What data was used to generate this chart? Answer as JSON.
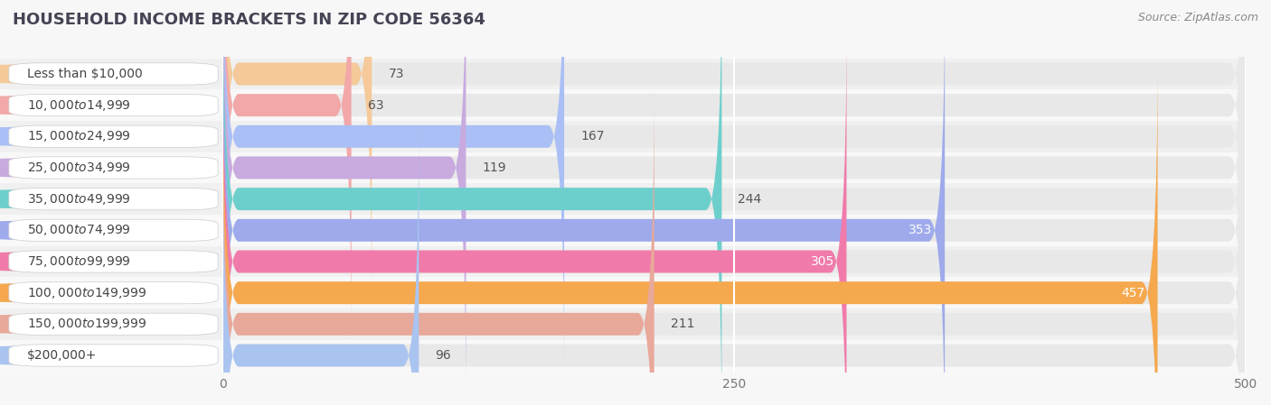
{
  "title": "HOUSEHOLD INCOME BRACKETS IN ZIP CODE 56364",
  "source": "Source: ZipAtlas.com",
  "categories": [
    "Less than $10,000",
    "$10,000 to $14,999",
    "$15,000 to $24,999",
    "$25,000 to $34,999",
    "$35,000 to $49,999",
    "$50,000 to $74,999",
    "$75,000 to $99,999",
    "$100,000 to $149,999",
    "$150,000 to $199,999",
    "$200,000+"
  ],
  "values": [
    73,
    63,
    167,
    119,
    244,
    353,
    305,
    457,
    211,
    96
  ],
  "bar_colors": [
    "#f5c99a",
    "#f2a8a8",
    "#aabff5",
    "#c8aadf",
    "#6dcfcc",
    "#9eaaeb",
    "#f07baa",
    "#f5a84e",
    "#e8a89a",
    "#aac4f0"
  ],
  "value_inside": [
    false,
    false,
    false,
    false,
    false,
    true,
    true,
    true,
    false,
    false
  ],
  "xlim": [
    0,
    500
  ],
  "xticks": [
    0,
    250,
    500
  ],
  "bg_color": "#f7f7f7",
  "bar_bg_color": "#e8e8e8",
  "row_bg_colors": [
    "#f0f0f0",
    "#f8f8f8"
  ],
  "title_fontsize": 13,
  "source_fontsize": 9,
  "cat_fontsize": 10,
  "val_fontsize": 10,
  "tick_fontsize": 10,
  "bar_height": 0.72
}
